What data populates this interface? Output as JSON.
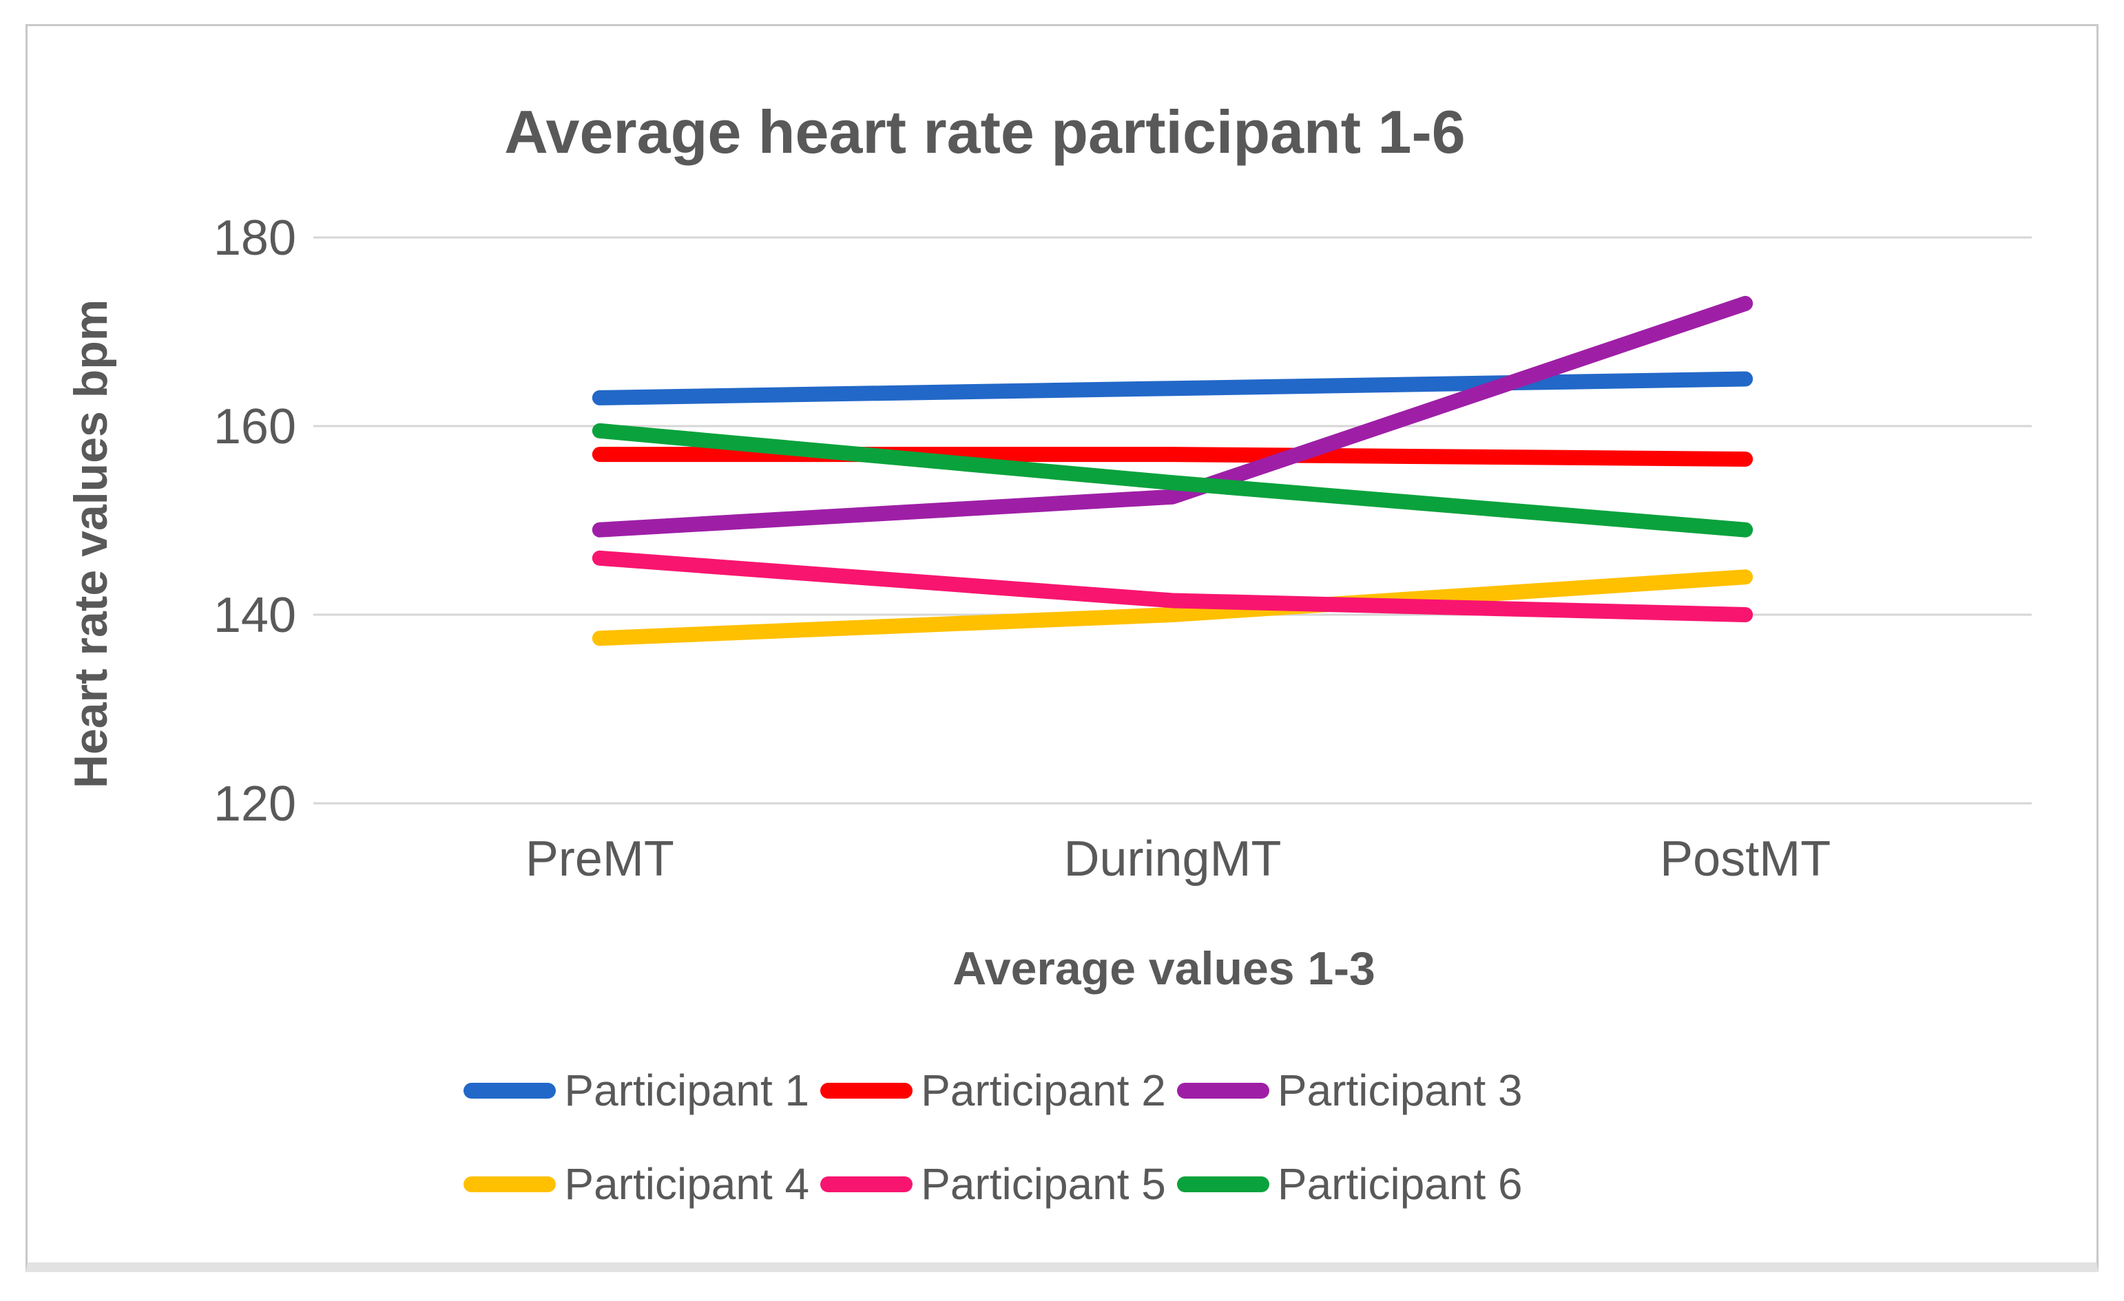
{
  "colors": {
    "text": "#595959",
    "gridline": "#d6d6d6",
    "frame_border": "#c9c9c9",
    "frame_bottom_shadow": "#e2e2e2",
    "background": "#ffffff"
  },
  "chart_data": {
    "type": "line",
    "title": "Average heart rate participant 1-6",
    "xlabel": "Average values 1-3",
    "ylabel": "Heart rate values bpm",
    "categories": [
      "PreMT",
      "DuringMT",
      "PostMT"
    ],
    "yticks": [
      180,
      160,
      140,
      120
    ],
    "ylim": [
      120,
      180
    ],
    "grid": "horizontal-only",
    "legend_position": "bottom",
    "line_style": "thick-rounded",
    "series": [
      {
        "name": "Participant 1",
        "color": "#2268c8",
        "values": [
          163,
          164,
          165
        ]
      },
      {
        "name": "Participant 2",
        "color": "#ff0000",
        "values": [
          157,
          157,
          156.5
        ]
      },
      {
        "name": "Participant 3",
        "color": "#9e1fa6",
        "values": [
          149,
          152.5,
          173
        ]
      },
      {
        "name": "Participant 4",
        "color": "#ffc000",
        "values": [
          137.5,
          140,
          144
        ]
      },
      {
        "name": "Participant 5",
        "color": "#f8156f",
        "values": [
          146,
          141.5,
          140
        ]
      },
      {
        "name": "Participant 6",
        "color": "#0aa23c",
        "values": [
          159.5,
          154,
          149
        ]
      }
    ]
  }
}
